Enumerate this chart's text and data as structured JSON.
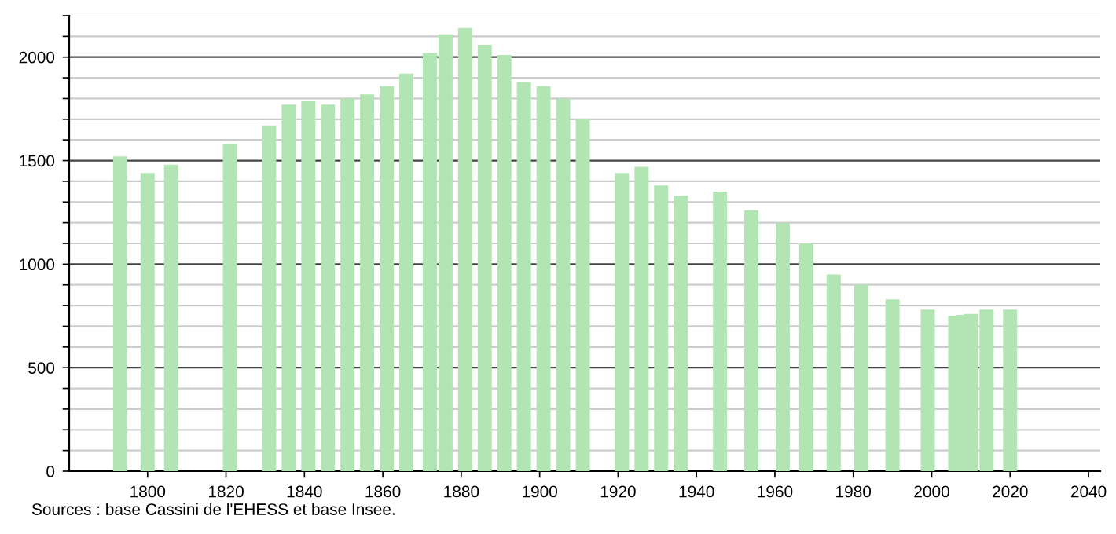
{
  "chart_data": {
    "type": "bar",
    "x": [
      1793,
      1800,
      1806,
      1821,
      1831,
      1836,
      1841,
      1846,
      1851,
      1856,
      1861,
      1866,
      1872,
      1876,
      1881,
      1886,
      1891,
      1896,
      1901,
      1906,
      1911,
      1921,
      1926,
      1931,
      1936,
      1946,
      1954,
      1962,
      1968,
      1975,
      1982,
      1990,
      1999,
      2006,
      2008,
      2010,
      2014,
      2020
    ],
    "values": [
      1520,
      1440,
      1480,
      1580,
      1670,
      1770,
      1790,
      1770,
      1800,
      1820,
      1860,
      1920,
      2020,
      2110,
      2140,
      2060,
      2010,
      1880,
      1860,
      1800,
      1700,
      1440,
      1470,
      1380,
      1330,
      1350,
      1260,
      1200,
      1100,
      950,
      900,
      830,
      780,
      750,
      755,
      760,
      780,
      780
    ],
    "color": "#b3e4b3",
    "xlim": [
      1780,
      2043
    ],
    "xticks": [
      1800,
      1820,
      1840,
      1860,
      1880,
      1900,
      1920,
      1940,
      1960,
      1980,
      2000,
      2020,
      2040
    ],
    "ylim": [
      0,
      2200
    ],
    "yticks": [
      0,
      {
        "value": 100,
        "label": null
      },
      {
        "value": 200,
        "label": null
      },
      {
        "value": 300,
        "label": null
      },
      {
        "value": 400,
        "label": null
      },
      500,
      {
        "value": 600,
        "label": null
      },
      {
        "value": 700,
        "label": null
      },
      {
        "value": 800,
        "label": null
      },
      {
        "value": 900,
        "label": null
      },
      1000,
      {
        "value": 1100,
        "label": null
      },
      {
        "value": 1200,
        "label": null
      },
      {
        "value": 1300,
        "label": null
      },
      {
        "value": 1400,
        "label": null
      },
      1500,
      {
        "value": 1600,
        "label": null
      },
      {
        "value": 1700,
        "label": null
      },
      {
        "value": 1800,
        "label": null
      },
      {
        "value": 1900,
        "label": null
      },
      2000,
      {
        "value": 2100,
        "label": null
      },
      {
        "value": 2200,
        "label": null
      }
    ],
    "grid": "y",
    "annotations": [
      "Sources : base Cassini de l'EHESS et base Insee."
    ]
  }
}
